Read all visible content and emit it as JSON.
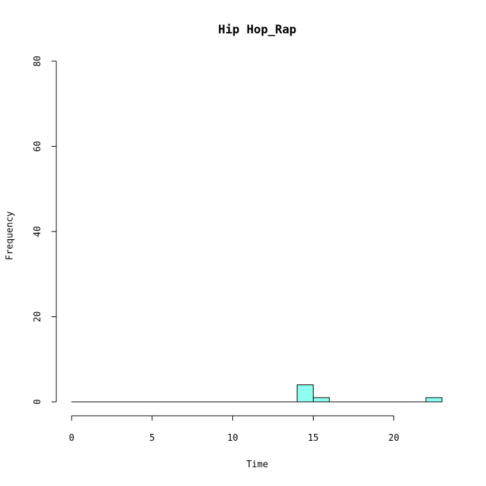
{
  "chart_data": {
    "type": "bar",
    "title": "Hip Hop_Rap",
    "xlabel": "Time",
    "ylabel": "Frequency",
    "xlim": [
      0,
      24
    ],
    "ylim": [
      0,
      80
    ],
    "x_ticks": [
      0,
      5,
      10,
      15,
      20
    ],
    "y_ticks": [
      0,
      20,
      40,
      60,
      80
    ],
    "bin_width": 1,
    "bin_edges": [
      0,
      1,
      2,
      3,
      4,
      5,
      6,
      7,
      8,
      9,
      10,
      11,
      12,
      13,
      14,
      15,
      16,
      17,
      18,
      19,
      20,
      21,
      22,
      23
    ],
    "counts": [
      0,
      0,
      0,
      0,
      0,
      0,
      0,
      0,
      0,
      0,
      0,
      0,
      0,
      0,
      4,
      1,
      0,
      0,
      0,
      0,
      0,
      0,
      1
    ],
    "bar_color": "#8EFFEE",
    "grid": false
  }
}
